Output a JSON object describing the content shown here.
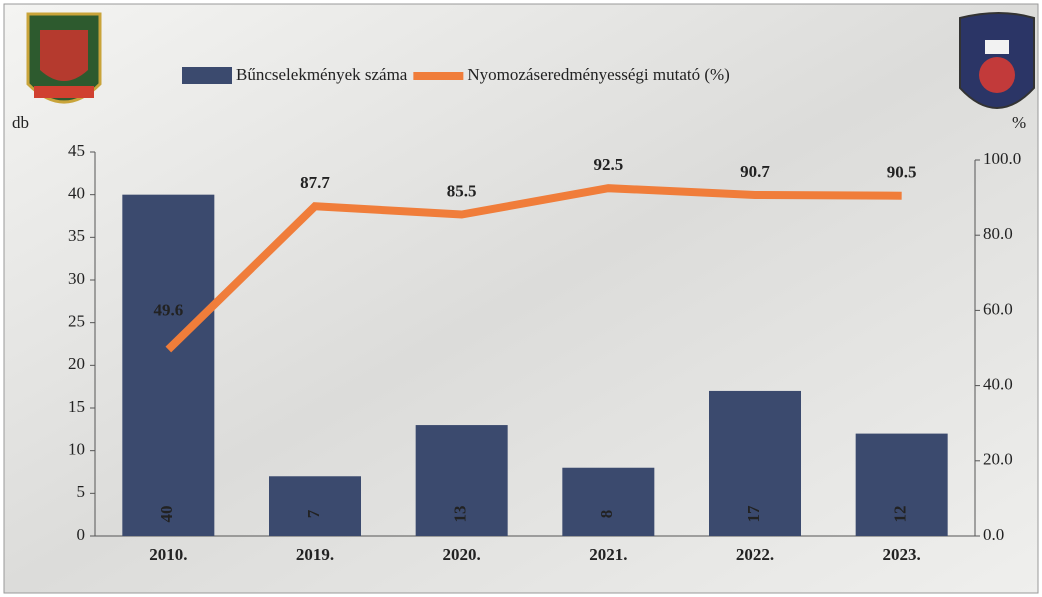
{
  "chart_data": {
    "type": "bar-line",
    "y_label": "db",
    "y2_label": "%",
    "categories": [
      "2010.",
      "2019.",
      "2020.",
      "2021.",
      "2022.",
      "2023."
    ],
    "series": [
      {
        "name": "Bűncselekmények száma",
        "type": "bar",
        "color": "#3b4a6e",
        "values": [
          40,
          7,
          13,
          8,
          17,
          12
        ]
      },
      {
        "name": "Nyomozáseredményességi mutató (%)",
        "type": "line",
        "axis": "y2",
        "color": "#f07d3a",
        "values": [
          49.6,
          87.7,
          85.5,
          92.5,
          90.7,
          90.5
        ]
      }
    ],
    "ylim": [
      0,
      45
    ],
    "yticks": [
      0,
      5,
      10,
      15,
      20,
      25,
      30,
      35,
      40,
      45
    ],
    "y2lim": [
      0,
      100
    ],
    "y2ticks": [
      {
        "value": 0,
        "label": "0.0"
      },
      {
        "value": 20,
        "label": "20.0"
      },
      {
        "value": 40,
        "label": "40.0"
      },
      {
        "value": 60,
        "label": "60.0"
      },
      {
        "value": 80,
        "label": "80.0"
      },
      {
        "value": 100,
        "label": "100.0"
      }
    ],
    "legend": "top"
  }
}
